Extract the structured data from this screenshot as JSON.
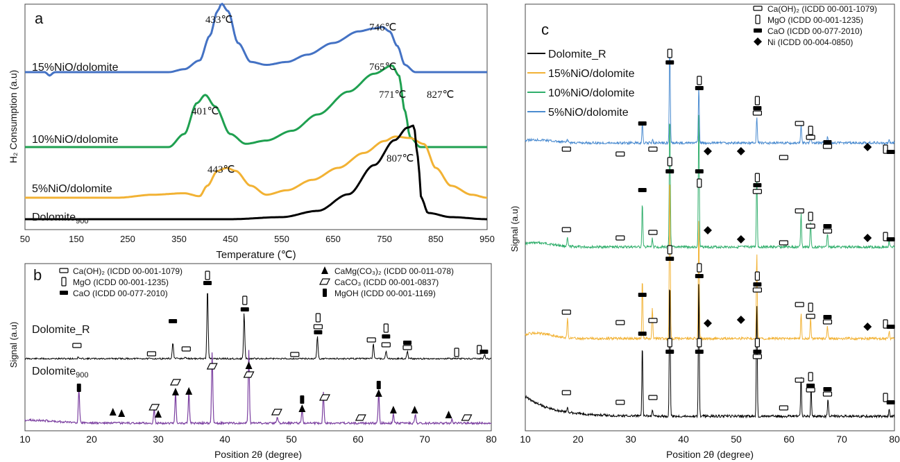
{
  "panels": {
    "a": {
      "letter": "a"
    },
    "b": {
      "letter": "b"
    },
    "c": {
      "letter": "c"
    }
  },
  "symbol_colors": {
    "ink": "#000000"
  },
  "chart_data": [
    {
      "id": "a",
      "type": "line",
      "xlabel": "Temperature (℃)",
      "ylabel": "H₂ Consumption (a.u)",
      "xlim": [
        50,
        950
      ],
      "xticks": [
        "50",
        "150",
        "250",
        "350",
        "450",
        "550",
        "650",
        "750",
        "850",
        "950"
      ],
      "series": [
        {
          "name": "15%NiO/dolomite",
          "color": "#4472c4",
          "offset": 0.78,
          "points": [
            [
              50,
              0.0
            ],
            [
              100,
              0.0
            ],
            [
              150,
              0.0
            ],
            [
              250,
              0.0
            ],
            [
              330,
              0.0
            ],
            [
              360,
              0.02
            ],
            [
              390,
              0.08
            ],
            [
              410,
              0.25
            ],
            [
              425,
              0.42
            ],
            [
              433,
              0.47
            ],
            [
              445,
              0.42
            ],
            [
              465,
              0.2
            ],
            [
              490,
              0.07
            ],
            [
              520,
              0.05
            ],
            [
              560,
              0.07
            ],
            [
              600,
              0.12
            ],
            [
              650,
              0.2
            ],
            [
              700,
              0.28
            ],
            [
              730,
              0.3
            ],
            [
              746,
              0.31
            ],
            [
              760,
              0.28
            ],
            [
              775,
              0.18
            ],
            [
              790,
              0.05
            ],
            [
              810,
              0.0
            ],
            [
              870,
              0.0
            ],
            [
              950,
              0.0
            ]
          ]
        },
        {
          "name": "10%NiO/dolomite",
          "color": "#1fa050",
          "offset": 0.4,
          "points": [
            [
              50,
              0.0
            ],
            [
              150,
              0.0
            ],
            [
              250,
              0.0
            ],
            [
              330,
              0.0
            ],
            [
              360,
              0.08
            ],
            [
              385,
              0.27
            ],
            [
              401,
              0.32
            ],
            [
              420,
              0.25
            ],
            [
              450,
              0.08
            ],
            [
              480,
              0.02
            ],
            [
              520,
              0.04
            ],
            [
              570,
              0.1
            ],
            [
              620,
              0.2
            ],
            [
              680,
              0.34
            ],
            [
              730,
              0.45
            ],
            [
              765,
              0.5
            ],
            [
              778,
              0.44
            ],
            [
              790,
              0.22
            ],
            [
              800,
              0.06
            ],
            [
              820,
              0.0
            ],
            [
              870,
              0.0
            ],
            [
              950,
              0.0
            ]
          ]
        },
        {
          "name": "5%NiO/dolomite",
          "color": "#f2b234",
          "offset": 0.14,
          "points": [
            [
              50,
              0.0
            ],
            [
              150,
              0.0
            ],
            [
              230,
              0.0
            ],
            [
              300,
              0.02
            ],
            [
              360,
              0.03
            ],
            [
              390,
              0.01
            ],
            [
              405,
              0.08
            ],
            [
              425,
              0.18
            ],
            [
              443,
              0.2
            ],
            [
              460,
              0.18
            ],
            [
              490,
              0.08
            ],
            [
              520,
              0.02
            ],
            [
              560,
              0.05
            ],
            [
              610,
              0.12
            ],
            [
              660,
              0.2
            ],
            [
              710,
              0.3
            ],
            [
              750,
              0.38
            ],
            [
              771,
              0.41
            ],
            [
              800,
              0.4
            ],
            [
              827,
              0.36
            ],
            [
              850,
              0.2
            ],
            [
              880,
              0.08
            ],
            [
              920,
              0.02
            ],
            [
              950,
              0.0
            ]
          ]
        },
        {
          "name": "Dolomite₉₀₀",
          "color": "#000000",
          "offset": 0.0,
          "points": [
            [
              50,
              0.0
            ],
            [
              250,
              0.0
            ],
            [
              450,
              0.0
            ],
            [
              550,
              0.01
            ],
            [
              620,
              0.04
            ],
            [
              680,
              0.12
            ],
            [
              730,
              0.26
            ],
            [
              770,
              0.38
            ],
            [
              795,
              0.44
            ],
            [
              807,
              0.45
            ],
            [
              815,
              0.3
            ],
            [
              822,
              0.1
            ],
            [
              835,
              0.03
            ],
            [
              880,
              0.01
            ],
            [
              950,
              0.0
            ]
          ]
        }
      ],
      "annotations": [
        "433℃",
        "746℃",
        "765℃",
        "401℃",
        "771℃",
        "827℃",
        "443℃",
        "807℃"
      ],
      "series_labels": [
        "15%NiO/dolomite",
        "10%NiO/dolomite",
        "5%NiO/dolomite",
        "Dolomite"
      ],
      "dolomite_subscript": "900"
    },
    {
      "id": "b",
      "type": "line",
      "xlabel": "Position 2θ (degree)",
      "ylabel": "Signal (a.u)",
      "xlim": [
        10,
        80
      ],
      "xticks": [
        "10",
        "20",
        "30",
        "40",
        "50",
        "60",
        "70",
        "80"
      ],
      "legend_left": [
        "Ca(OH)₂ (ICDD 00-001-1079)",
        "MgO (ICDD 00-001-1235)",
        "CaO (ICDD 00-077-2010)"
      ],
      "legend_right": [
        "CaMg(CO₃)₂ (ICDD 00-011-078)",
        "CaCO₃ (ICDD 00-001-0837)",
        "MgOH (ICDD 00-001-1169)"
      ],
      "series": [
        {
          "name": "Dolomite_R",
          "color": "#000000",
          "peaks": [
            [
              18,
              0.02
            ],
            [
              32.2,
              0.22
            ],
            [
              34.1,
              0.02
            ],
            [
              37.4,
              0.95
            ],
            [
              42.9,
              0.6
            ],
            [
              53.9,
              0.3
            ],
            [
              62.3,
              0.2
            ],
            [
              64.2,
              0.1
            ],
            [
              67.4,
              0.1
            ],
            [
              79,
              0.05
            ]
          ]
        },
        {
          "name": "Dolomite₉₀₀",
          "color": "#7b3fa0",
          "peaks": [
            [
              18.1,
              0.45
            ],
            [
              29.4,
              0.2
            ],
            [
              32.6,
              0.4
            ],
            [
              34.6,
              0.4
            ],
            [
              38.1,
              0.95
            ],
            [
              43.6,
              0.95
            ],
            [
              47.9,
              0.08
            ],
            [
              51.6,
              0.18
            ],
            [
              54.8,
              0.4
            ],
            [
              63.1,
              0.42
            ],
            [
              65.3,
              0.12
            ],
            [
              68.6,
              0.12
            ],
            [
              74.1,
              0.05
            ]
          ]
        }
      ],
      "series_labels": [
        "Dolomite_R",
        "Dolomite"
      ],
      "dolomite_subscript": "900"
    },
    {
      "id": "c",
      "type": "line",
      "xlabel": "Position 2θ (degree)",
      "ylabel": "Signal (a.u)",
      "xlim": [
        10,
        80
      ],
      "xticks": [
        "10",
        "20",
        "30",
        "40",
        "50",
        "60",
        "70",
        "80"
      ],
      "legend_symbols": [
        "Ca(OH)₂ (ICDD 00-001-1079)",
        "MgO (ICDD 00-001-1235)",
        "CaO (ICDD 00-077-2010)",
        "Ni (ICDD 00-004-0850)"
      ],
      "legend_series": [
        {
          "name": "Dolomite_R",
          "color": "#000000"
        },
        {
          "name": "15%NiO/dolomite",
          "color": "#f2b234"
        },
        {
          "name": "10%NiO/dolomite",
          "color": "#2fae6b"
        },
        {
          "name": "5%NiO/dolomite",
          "color": "#4a8bd0"
        }
      ],
      "series": [
        {
          "name": "5%NiO/dolomite",
          "color": "#4a8bd0",
          "peaks": [
            [
              18,
              0.03
            ],
            [
              32.2,
              0.2
            ],
            [
              34.1,
              0.03
            ],
            [
              37.4,
              0.98
            ],
            [
              42.9,
              0.55
            ],
            [
              53.9,
              0.25
            ],
            [
              62.3,
              0.18
            ],
            [
              64.1,
              0.12
            ],
            [
              67.3,
              0.07
            ],
            [
              79,
              0.03
            ]
          ]
        },
        {
          "name": "10%NiO/dolomite",
          "color": "#2fae6b",
          "peaks": [
            [
              18,
              0.06
            ],
            [
              32.2,
              0.32
            ],
            [
              34.1,
              0.06
            ],
            [
              37.4,
              0.98
            ],
            [
              42.9,
              0.98
            ],
            [
              53.9,
              0.55
            ],
            [
              62.3,
              0.25
            ],
            [
              64.1,
              0.18
            ],
            [
              67.3,
              0.1
            ],
            [
              79,
              0.05
            ]
          ]
        },
        {
          "name": "15%NiO/dolomite",
          "color": "#f2b234",
          "peaks": [
            [
              18,
              0.12
            ],
            [
              32.2,
              0.35
            ],
            [
              34.1,
              0.18
            ],
            [
              37.4,
              0.98
            ],
            [
              42.9,
              0.7
            ],
            [
              53.9,
              0.5
            ],
            [
              62.3,
              0.14
            ],
            [
              64.1,
              0.12
            ],
            [
              67.3,
              0.07
            ],
            [
              79,
              0.04
            ]
          ]
        },
        {
          "name": "Dolomite_R",
          "color": "#000000",
          "peaks": [
            [
              18,
              0.04
            ],
            [
              32.2,
              0.5
            ],
            [
              34.1,
              0.05
            ],
            [
              37.4,
              0.98
            ],
            [
              42.9,
              0.96
            ],
            [
              53.9,
              0.8
            ],
            [
              62.3,
              0.28
            ],
            [
              64.2,
              0.2
            ],
            [
              67.4,
              0.12
            ],
            [
              79,
              0.05
            ]
          ]
        }
      ]
    }
  ]
}
